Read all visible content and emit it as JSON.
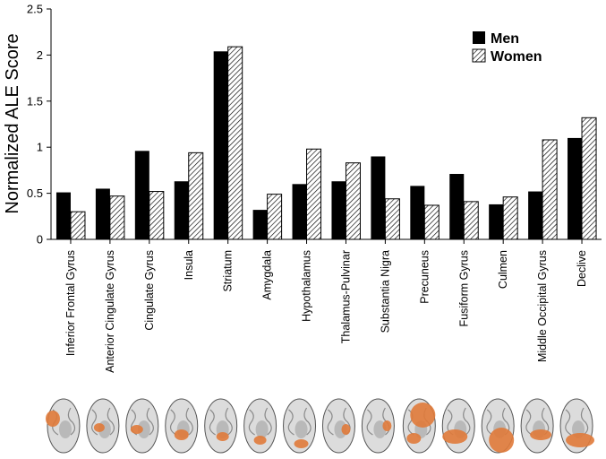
{
  "chart_data": {
    "type": "bar",
    "ylabel": "Normalized ALE Score",
    "ylim": [
      0,
      2.5
    ],
    "yticks": [
      "0",
      "0.5",
      "1",
      "1.5",
      "2",
      "2.5"
    ],
    "categories": [
      "Inferior Frontal Gyrus",
      "Anterior Cingulate Gyrus",
      "Cingulate Gyrus",
      "Insula",
      "Striatum",
      "Amygdala",
      "Hypothalamus",
      "Thalamus-Pulvinar",
      "Substantia Nigra",
      "Precuneus",
      "Fusiform Gyrus",
      "Culmen",
      "Middle Occipital Gyrus",
      "Declive"
    ],
    "series": [
      {
        "name": "Men",
        "fill": "solid",
        "color": "#000000",
        "values": [
          0.51,
          0.55,
          0.96,
          0.63,
          2.04,
          0.32,
          0.6,
          0.63,
          0.9,
          0.58,
          0.71,
          0.38,
          0.52,
          1.1
        ]
      },
      {
        "name": "Women",
        "fill": "hatched",
        "color": "#000000",
        "values": [
          0.3,
          0.47,
          0.52,
          0.94,
          2.09,
          0.49,
          0.98,
          0.83,
          0.44,
          0.37,
          0.41,
          0.46,
          1.08,
          1.32
        ]
      }
    ],
    "legend_position": "top-right",
    "grid": false,
    "highlight_color": "#e07a3a"
  }
}
